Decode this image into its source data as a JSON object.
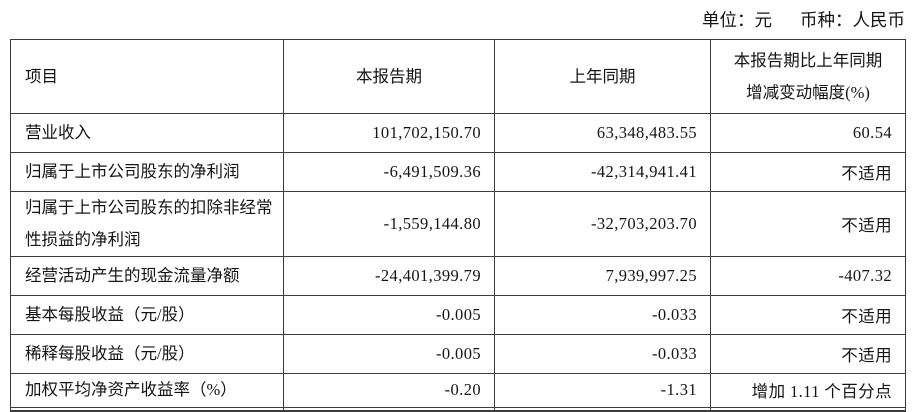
{
  "caption": {
    "unit": "单位：元",
    "currency": "币种：人民币"
  },
  "table": {
    "headers": {
      "item": "项目",
      "current_period": "本报告期",
      "prior_period": "上年同期",
      "change_line1": "本报告期比上年同期",
      "change_line2": "增减变动幅度(%)"
    },
    "rows": [
      {
        "item": "营业收入",
        "current": "101,702,150.70",
        "prior": "63,348,483.55",
        "change": "60.54"
      },
      {
        "item": "归属于上市公司股东的净利润",
        "current": "-6,491,509.36",
        "prior": "-42,314,941.41",
        "change": "不适用"
      },
      {
        "item": "归属于上市公司股东的扣除非经常性损益的净利润",
        "current": "-1,559,144.80",
        "prior": "-32,703,203.70",
        "change": "不适用"
      },
      {
        "item": "经营活动产生的现金流量净额",
        "current": "-24,401,399.79",
        "prior": "7,939,997.25",
        "change": "-407.32"
      },
      {
        "item": "基本每股收益（元/股）",
        "current": "-0.005",
        "prior": "-0.033",
        "change": "不适用"
      },
      {
        "item": "稀释每股收益（元/股）",
        "current": "-0.005",
        "prior": "-0.033",
        "change": "不适用"
      },
      {
        "item": "加权平均净资产收益率（%）",
        "current": "-0.20",
        "prior": "-1.31",
        "change": "增加 1.11 个百分点"
      }
    ]
  }
}
